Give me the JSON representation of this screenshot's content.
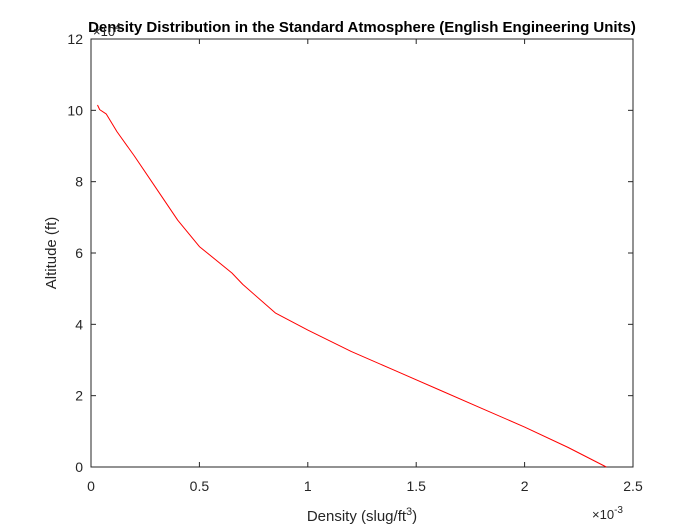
{
  "chart_data": {
    "type": "line",
    "title": "Density Distribution in the Standard Atmosphere (English Engineering Units)",
    "xlabel": "Density (slug/ft",
    "xlabel_superscript": "3",
    "xlabel_suffix": ")",
    "ylabel": "Altitude (ft)",
    "x_exponent_base": "×10",
    "x_exponent_power": "-3",
    "y_exponent_base": "×10",
    "y_exponent_power": "4",
    "xlim": [
      0,
      2.5
    ],
    "ylim": [
      0,
      12
    ],
    "x_scale": 0.001,
    "y_scale": 10000,
    "xticks": [
      0,
      0.5,
      1,
      1.5,
      2,
      2.5
    ],
    "xtick_labels": [
      "0",
      "0.5",
      "1",
      "1.5",
      "2",
      "2.5"
    ],
    "yticks": [
      0,
      2,
      4,
      6,
      8,
      10,
      12
    ],
    "ytick_labels": [
      "0",
      "2",
      "4",
      "6",
      "8",
      "10",
      "12"
    ],
    "grid": false,
    "series": [
      {
        "color": "#ff0000",
        "x": [
          2.377,
          2.2,
          2.0,
          1.8,
          1.6,
          1.4,
          1.2,
          1.0,
          0.85,
          0.7,
          0.65,
          0.5,
          0.4,
          0.3,
          0.2,
          0.12,
          0.07,
          0.04,
          0.03
        ],
        "y": [
          0,
          0.55,
          1.12,
          1.65,
          2.18,
          2.71,
          3.24,
          3.84,
          4.32,
          5.12,
          5.44,
          6.18,
          6.92,
          7.82,
          8.72,
          9.4,
          9.9,
          10.02,
          10.15
        ]
      }
    ]
  }
}
